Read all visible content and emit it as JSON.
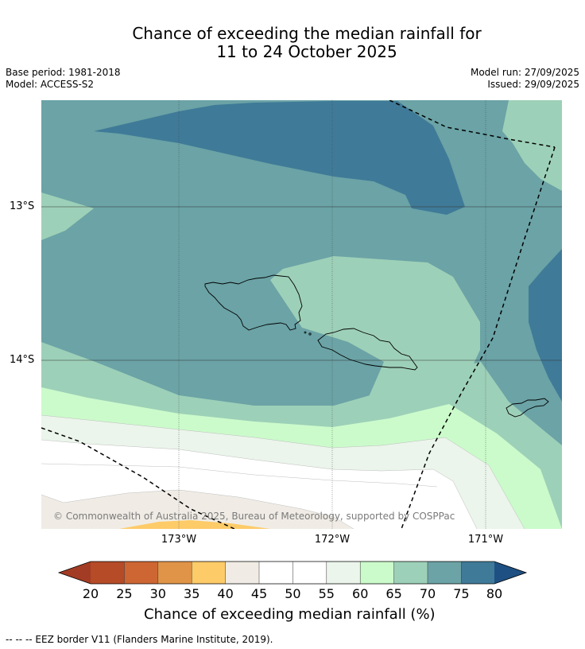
{
  "title_line1": "Chance of exceeding the median rainfall for",
  "title_line2": "11 to 24 October 2025",
  "base_period": "Base period: 1981-2018",
  "model": "Model: ACCESS-S2",
  "model_run": "Model run: 27/09/2025",
  "issued": "Issued: 29/09/2025",
  "lat_labels": [
    "13°S",
    "14°S"
  ],
  "lon_labels": [
    "173°W",
    "172°W",
    "171°W"
  ],
  "copyright": "© Commonwealth of Australia 2025, Bureau of Meteorology, supported by COSPPac",
  "colorbar": {
    "ticks": [
      "20",
      "25",
      "30",
      "35",
      "40",
      "45",
      "50",
      "55",
      "60",
      "65",
      "70",
      "75",
      "80"
    ],
    "title": "Chance of exceeding median rainfall (%)",
    "colors": [
      "#a33c24",
      "#b54b27",
      "#cd6633",
      "#e09448",
      "#fdcb68",
      "#f0ece5",
      "#ffffff",
      "#ffffff",
      "#ebf5eb",
      "#cbfbcb",
      "#9dd0b8",
      "#6ba3a6",
      "#3f7a98",
      "#1e5083"
    ]
  },
  "footnote": "--  --  -- EEZ border V11 (Flanders Marine Institute, 2019)."
}
